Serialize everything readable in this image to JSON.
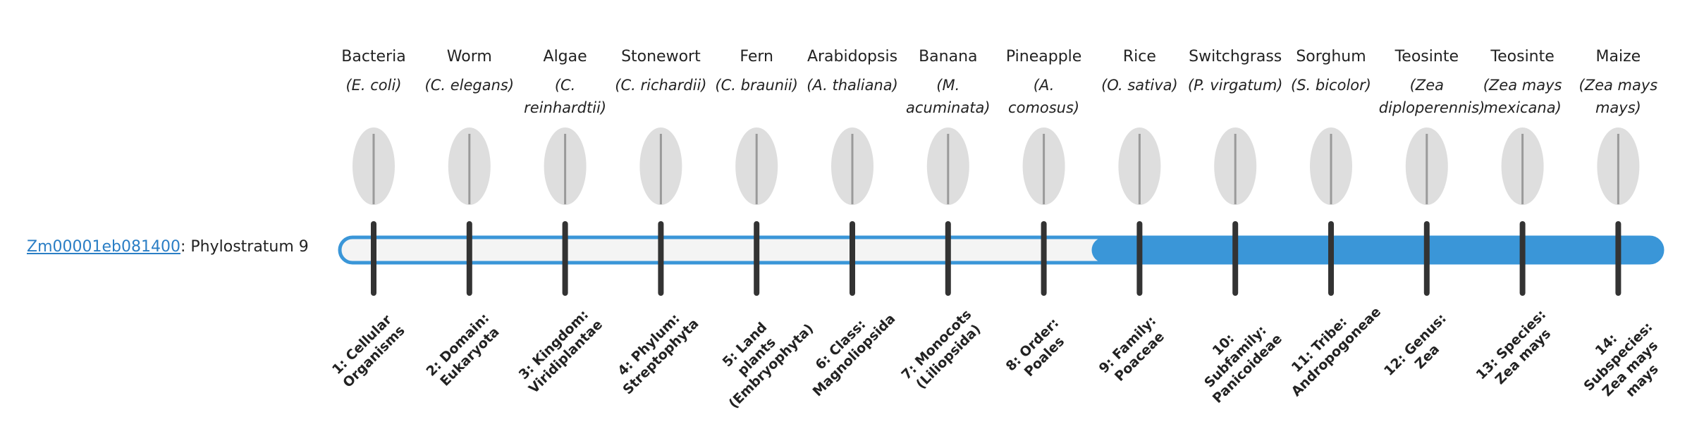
{
  "gene": {
    "id": "Zm00001eb081400",
    "label": ": Phylostratum 9"
  },
  "organisms": [
    {
      "name": "Bacteria",
      "species": "(E. coli)",
      "stratum": "1: Cellular Organisms"
    },
    {
      "name": "Worm",
      "species": "(C. elegans)",
      "stratum": "2: Domain: Eukaryota"
    },
    {
      "name": "Algae",
      "species": "(C. reinhardtii)",
      "stratum": "3: Kingdom: Viridiplantae"
    },
    {
      "name": "Stonewort",
      "species": "(C. richardii)",
      "stratum": "4: Phylum: Streptophyta"
    },
    {
      "name": "Fern",
      "species": "(C. braunii)",
      "stratum": "5: Land plants (Embryophyta)"
    },
    {
      "name": "Arabidopsis",
      "species": "(A. thaliana)",
      "stratum": "6: Class: Magnoliopsida"
    },
    {
      "name": "Banana",
      "species": "(M. acuminata)",
      "stratum": "7: Monocots (Liliopsida)"
    },
    {
      "name": "Pineapple",
      "species": "(A. comosus)",
      "stratum": "8: Order: Poales"
    },
    {
      "name": "Rice",
      "species": "(O. sativa)",
      "stratum": "9: Family: Poaceae"
    },
    {
      "name": "Switchgrass",
      "species": "(P. virgatum)",
      "stratum": "10: Subfamily: Panicoideae"
    },
    {
      "name": "Sorghum",
      "species": "(S. bicolor)",
      "stratum": "11: Tribe: Andropogoneae"
    },
    {
      "name": "Teosinte",
      "species": "(Zea diploperennis)",
      "stratum": "12: Genus: Zea"
    },
    {
      "name": "Teosinte",
      "species": "(Zea mays mexicana)",
      "stratum": "13: Species: Zea mays"
    },
    {
      "name": "Maize",
      "species": "(Zea mays mays)",
      "stratum": "14: Subspecies: Zea mays mays"
    }
  ]
}
